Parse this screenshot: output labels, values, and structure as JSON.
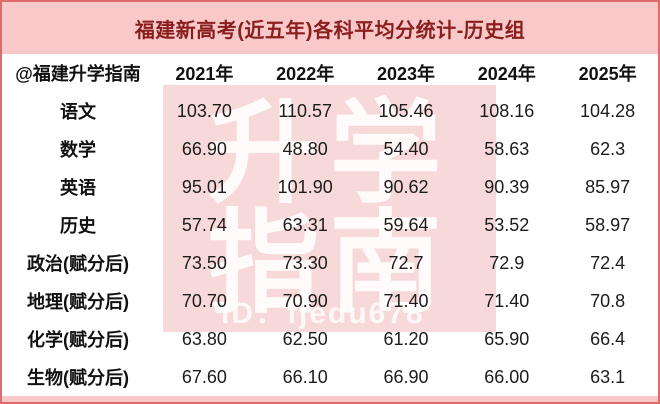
{
  "title": "福建新高考(近五年)各科平均分统计-历史组",
  "colors": {
    "frame_border": "#e06a6a",
    "title_band_bg": "#f9c9c9",
    "title_text": "#8a1e1e",
    "body_bg": "#ffffff",
    "text": "#1c1c1c",
    "watermark_bg": "rgba(236,154,154,0.38)",
    "watermark_text": "#ffffff"
  },
  "watermark": {
    "line1": "升学",
    "line2": "指南",
    "id": "ID：fjedu678"
  },
  "table": {
    "header": [
      "@福建升学指南",
      "2021年",
      "2022年",
      "2023年",
      "2024年",
      "2025年"
    ],
    "rows": [
      {
        "label": "语文",
        "values": [
          "103.70",
          "110.57",
          "105.46",
          "108.16",
          "104.28"
        ]
      },
      {
        "label": "数学",
        "values": [
          "66.90",
          "48.80",
          "54.40",
          "58.63",
          "62.3"
        ]
      },
      {
        "label": "英语",
        "values": [
          "95.01",
          "101.90",
          "90.62",
          "90.39",
          "85.97"
        ]
      },
      {
        "label": "历史",
        "values": [
          "57.74",
          "63.31",
          "59.64",
          "53.52",
          "58.97"
        ]
      },
      {
        "label": "政治(赋分后)",
        "values": [
          "73.50",
          "73.30",
          "72.7",
          "72.9",
          "72.4"
        ]
      },
      {
        "label": "地理(赋分后)",
        "values": [
          "70.70",
          "70.90",
          "71.40",
          "71.40",
          "70.8"
        ]
      },
      {
        "label": "化学(赋分后)",
        "values": [
          "63.80",
          "62.50",
          "61.20",
          "65.90",
          "66.4"
        ]
      },
      {
        "label": "生物(赋分后)",
        "values": [
          "67.60",
          "66.10",
          "66.90",
          "66.00",
          "63.1"
        ]
      }
    ]
  },
  "chart_data": {
    "type": "table",
    "title": "福建新高考(近五年)各科平均分统计-历史组",
    "columns": [
      "2021年",
      "2022年",
      "2023年",
      "2024年",
      "2025年"
    ],
    "row_labels": [
      "语文",
      "数学",
      "英语",
      "历史",
      "政治(赋分后)",
      "地理(赋分后)",
      "化学(赋分后)",
      "生物(赋分后)"
    ],
    "series": [
      {
        "name": "语文",
        "values": [
          103.7,
          110.57,
          105.46,
          108.16,
          104.28
        ]
      },
      {
        "name": "数学",
        "values": [
          66.9,
          48.8,
          54.4,
          58.63,
          62.3
        ]
      },
      {
        "name": "英语",
        "values": [
          95.01,
          101.9,
          90.62,
          90.39,
          85.97
        ]
      },
      {
        "name": "历史",
        "values": [
          57.74,
          63.31,
          59.64,
          53.52,
          58.97
        ]
      },
      {
        "name": "政治(赋分后)",
        "values": [
          73.5,
          73.3,
          72.7,
          72.9,
          72.4
        ]
      },
      {
        "name": "地理(赋分后)",
        "values": [
          70.7,
          70.9,
          71.4,
          71.4,
          70.8
        ]
      },
      {
        "name": "化学(赋分后)",
        "values": [
          63.8,
          62.5,
          61.2,
          65.9,
          66.4
        ]
      },
      {
        "name": "生物(赋分后)",
        "values": [
          67.6,
          66.1,
          66.9,
          66.0,
          63.1
        ]
      }
    ],
    "source_handle": "@福建升学指南",
    "watermark_id": "ID：fjedu678"
  }
}
